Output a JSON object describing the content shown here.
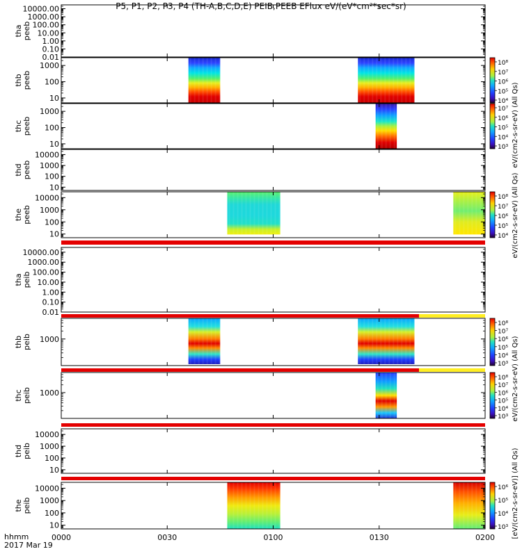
{
  "title": "P5, P1, P2, P3, P4 (TH-A,B,C,D,E) PEIB,PEEB EFlux eV/(eV*cm²*sec*sr)",
  "time_axis": {
    "ticks": [
      "0000",
      "0030",
      "0100",
      "0130",
      "0200"
    ],
    "label_line1": "hhmm",
    "label_line2": "2017 Mar 19"
  },
  "colorbar_ticks": {
    "peeb": [
      "10⁸",
      "10⁷",
      "10⁶",
      "10⁵",
      "10⁴"
    ],
    "peeb_c": [
      "10⁷",
      "10⁶",
      "10⁵",
      "10⁴",
      "10³"
    ],
    "peib_b": [
      "10⁸",
      "10⁷",
      "10⁶",
      "10⁵",
      "10⁴",
      "10³"
    ],
    "peib_e": [
      "10⁶",
      "10⁵",
      "10⁴",
      "10³"
    ]
  },
  "colorbar_labels": {
    "eflux_all_qs": "eV/(cm2-s-sr-eV) (All Qs)",
    "eflux_all_qs_bracket": "[eV/(cm2-s-sr-eV)] (All Qs)"
  },
  "chart_data": {
    "type": "heatmap",
    "x_unit": "hhmm (2017 Mar 19)",
    "x_range": [
      "00:00",
      "02:00"
    ],
    "panels": [
      {
        "probe": "tha",
        "product": "peeb",
        "ylabel": "tha peeb",
        "yticks": [
          "10000.00",
          "1000.00",
          "100.00",
          "10.00",
          "1.00",
          "0.10",
          "0.01"
        ],
        "ylim": [
          0.01,
          30000
        ],
        "ylog": true,
        "data_blocks": [],
        "colorbar": null
      },
      {
        "probe": "thb",
        "product": "peeb",
        "ylabel": "thb peeb",
        "yticks": [
          "1000",
          "100",
          "10"
        ],
        "ylim": [
          5,
          3000
        ],
        "ylog": true,
        "data_blocks": [
          {
            "t_start": "00:36",
            "t_end": "00:45"
          },
          {
            "t_start": "01:24",
            "t_end": "01:40"
          }
        ],
        "colorbar": "peeb"
      },
      {
        "probe": "thc",
        "product": "peeb",
        "ylabel": "thc peeb",
        "yticks": [
          "1000",
          "100",
          "10"
        ],
        "ylim": [
          5,
          3000
        ],
        "ylog": true,
        "data_blocks": [
          {
            "t_start": "01:29",
            "t_end": "01:35"
          }
        ],
        "colorbar": "peeb_c"
      },
      {
        "probe": "thd",
        "product": "peeb",
        "ylabel": "thd peeb",
        "yticks": [
          "10000",
          "1000",
          "100",
          "10"
        ],
        "ylim": [
          5,
          30000
        ],
        "ylog": true,
        "data_blocks": [],
        "colorbar": null
      },
      {
        "probe": "the",
        "product": "peeb",
        "ylabel": "the peeb",
        "yticks": [
          "10000",
          "1000",
          "100",
          "10"
        ],
        "ylim": [
          5,
          30000
        ],
        "ylog": true,
        "data_blocks": [
          {
            "t_start": "00:47",
            "t_end": "01:02"
          },
          {
            "t_start": "01:51",
            "t_end": "02:00"
          }
        ],
        "colorbar": "peeb"
      },
      {
        "probe": "tha",
        "product": "peib",
        "ylabel": "tha peib",
        "yticks": [
          "10000.00",
          "1000.00",
          "100.00",
          "10.00",
          "1.00",
          "0.10",
          "0.01"
        ],
        "ylim": [
          0.01,
          30000
        ],
        "ylog": true,
        "data_blocks": [],
        "colorbar": null
      },
      {
        "probe": "thb",
        "product": "peib",
        "ylabel": "thb peib",
        "yticks": [
          "1000"
        ],
        "ylim": [
          100,
          6000
        ],
        "ylog": true,
        "data_blocks": [
          {
            "t_start": "00:36",
            "t_end": "00:45"
          },
          {
            "t_start": "01:24",
            "t_end": "01:40"
          }
        ],
        "colorbar": "peib_b"
      },
      {
        "probe": "thc",
        "product": "peib",
        "ylabel": "thc peib",
        "yticks": [
          "1000"
        ],
        "ylim": [
          100,
          6000
        ],
        "ylog": true,
        "data_blocks": [
          {
            "t_start": "01:29",
            "t_end": "01:35"
          }
        ],
        "colorbar": "peib_b"
      },
      {
        "probe": "thd",
        "product": "peib",
        "ylabel": "thd peib",
        "yticks": [
          "10000",
          "1000",
          "100",
          "10"
        ],
        "ylim": [
          5,
          30000
        ],
        "ylog": true,
        "data_blocks": [],
        "colorbar": null
      },
      {
        "probe": "the",
        "product": "peib",
        "ylabel": "the peib",
        "yticks": [
          "10000",
          "1000",
          "100",
          "10"
        ],
        "ylim": [
          5,
          30000
        ],
        "ylog": true,
        "data_blocks": [
          {
            "t_start": "00:47",
            "t_end": "01:02"
          },
          {
            "t_start": "01:51",
            "t_end": "02:00"
          }
        ],
        "colorbar": "peib_e"
      }
    ]
  }
}
